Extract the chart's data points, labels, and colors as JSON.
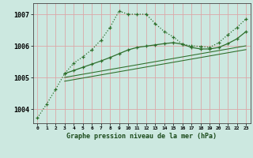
{
  "title": "Graphe pression niveau de la mer (hPa)",
  "bg_color": "#cce8e0",
  "grid_color": "#dba8a8",
  "line_color": "#2d6e2a",
  "xlim": [
    -0.5,
    23.5
  ],
  "ylim": [
    1003.55,
    1007.35
  ],
  "yticks": [
    1004,
    1005,
    1006,
    1007
  ],
  "xticks": [
    0,
    1,
    2,
    3,
    4,
    5,
    6,
    7,
    8,
    9,
    10,
    11,
    12,
    13,
    14,
    15,
    16,
    17,
    18,
    19,
    20,
    21,
    22,
    23
  ],
  "line1_x": [
    0,
    1,
    2,
    3,
    4,
    5,
    6,
    7,
    8,
    9,
    10,
    11,
    12,
    13,
    14,
    15,
    16,
    17,
    18,
    19,
    20,
    21,
    22,
    23
  ],
  "line1_y": [
    1003.72,
    1004.15,
    1004.62,
    1005.12,
    1005.45,
    1005.65,
    1005.88,
    1006.18,
    1006.58,
    1007.1,
    1007.0,
    1007.0,
    1007.0,
    1006.7,
    1006.45,
    1006.28,
    1006.05,
    1006.0,
    1005.98,
    1005.95,
    1006.1,
    1006.35,
    1006.58,
    1006.85
  ],
  "line2_x": [
    3,
    4,
    5,
    6,
    7,
    8,
    9,
    10,
    11,
    12,
    13,
    14,
    15,
    16,
    17,
    18,
    19,
    20,
    21,
    22,
    23
  ],
  "line2_y": [
    1005.12,
    1005.22,
    1005.32,
    1005.42,
    1005.52,
    1005.63,
    1005.75,
    1005.87,
    1005.95,
    1005.99,
    1006.03,
    1006.07,
    1006.1,
    1006.05,
    1005.95,
    1005.9,
    1005.9,
    1005.95,
    1006.07,
    1006.22,
    1006.45
  ],
  "line3_x": [
    3,
    23
  ],
  "line3_y": [
    1005.0,
    1006.0
  ],
  "line4_x": [
    3,
    23
  ],
  "line4_y": [
    1004.88,
    1005.88
  ]
}
